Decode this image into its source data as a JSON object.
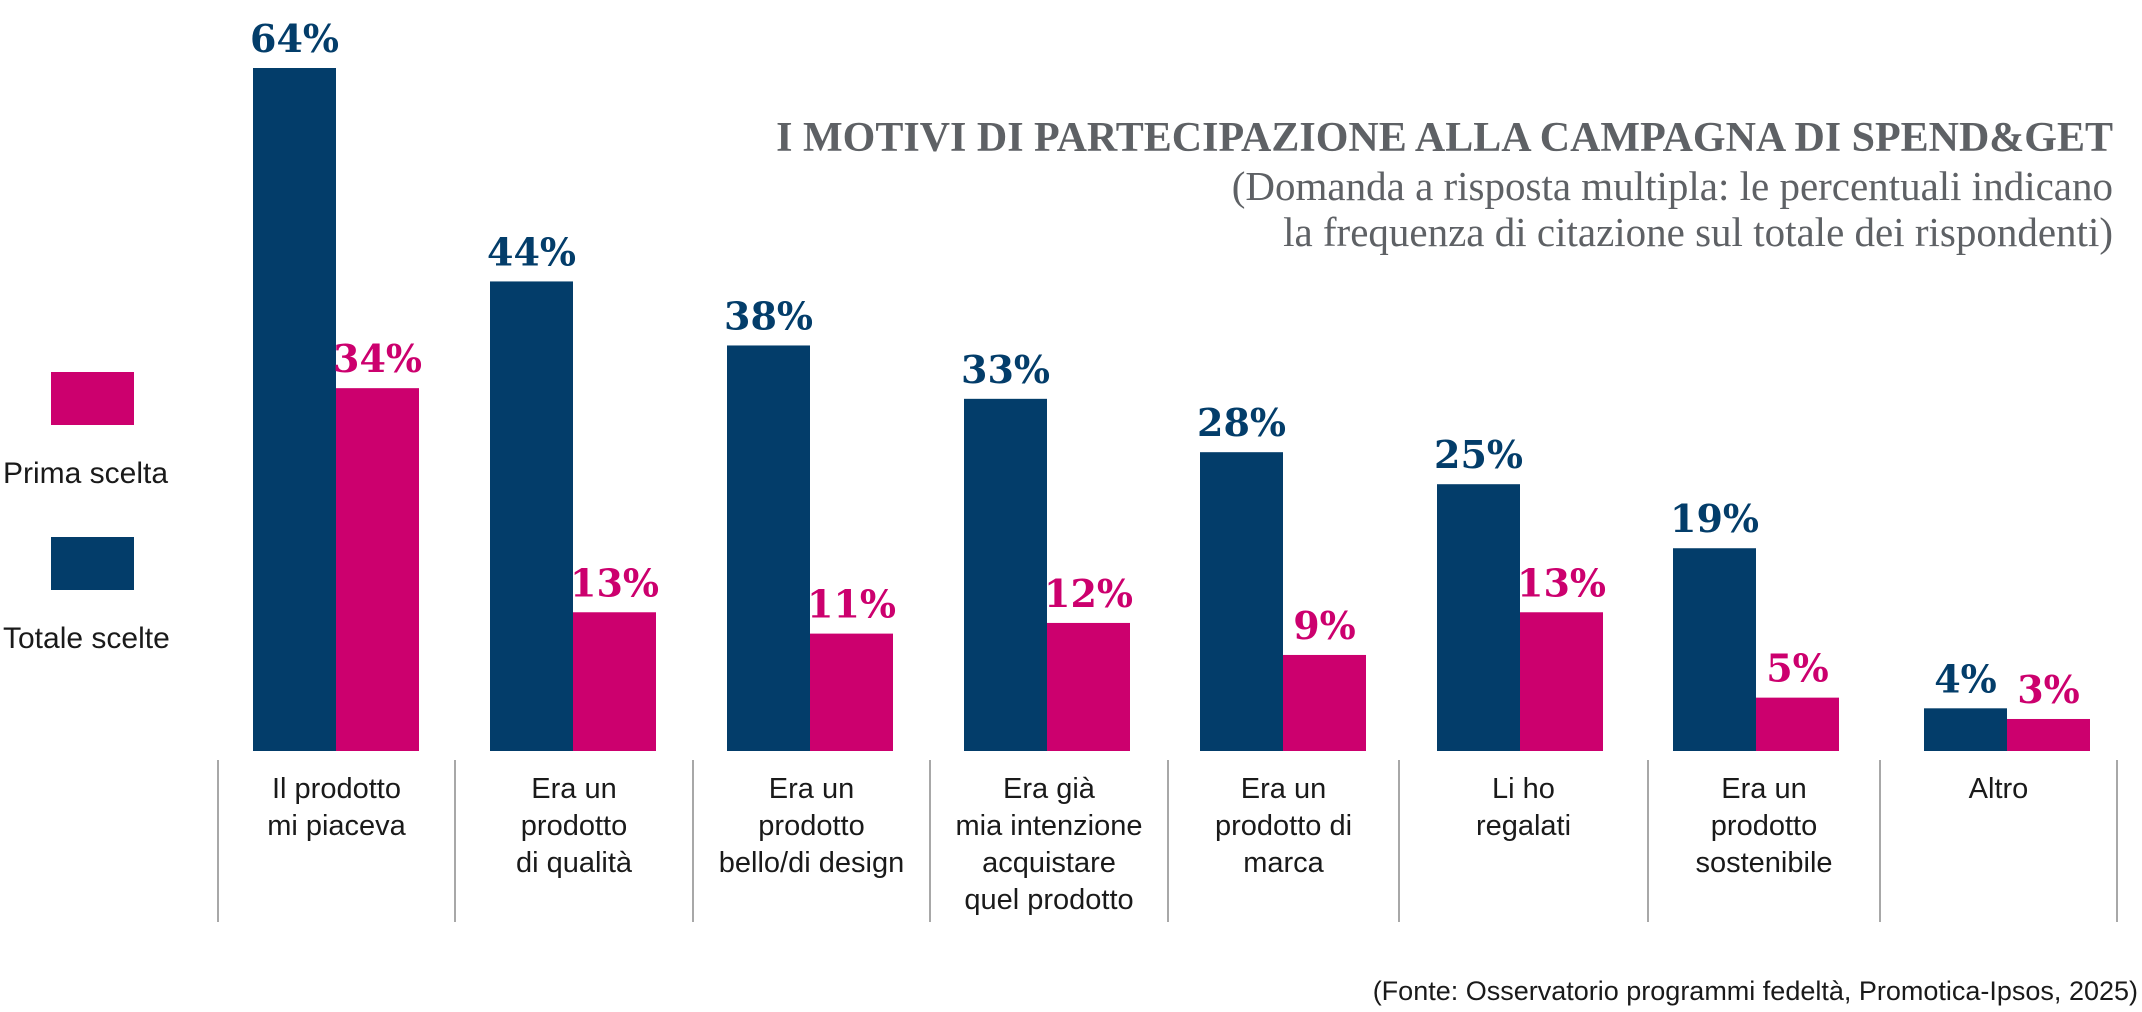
{
  "chart_data": {
    "type": "bar",
    "title": "I MOTIVI DI PARTECIPAZIONE ALLA CAMPAGNA DI SPEND&GET",
    "subtitle": [
      "(Domanda a risposta multipla: le percentuali indicano",
      "la frequenza di citazione sul totale dei rispondenti)"
    ],
    "xlabel": "",
    "ylabel": "",
    "ylim": [
      0,
      64
    ],
    "grid": false,
    "legend_position": "left",
    "value_suffix": "%",
    "categories": [
      [
        "Il prodotto",
        "mi piaceva"
      ],
      [
        "Era un",
        "prodotto",
        "di qualità"
      ],
      [
        "Era un",
        "prodotto",
        "bello/di design"
      ],
      [
        "Era già",
        "mia intenzione",
        "acquistare",
        "quel prodotto"
      ],
      [
        "Era un",
        "prodotto di",
        "marca"
      ],
      [
        "Li ho",
        "regalati"
      ],
      [
        "Era un",
        "prodotto",
        "sostenibile"
      ],
      [
        "Altro"
      ]
    ],
    "series": [
      {
        "name": "Totale scelte",
        "color": "#033d6a",
        "values": [
          64,
          44,
          38,
          33,
          28,
          25,
          19,
          4
        ]
      },
      {
        "name": "Prima scelta",
        "color": "#cc006e",
        "values": [
          34,
          13,
          11,
          12,
          9,
          13,
          5,
          3
        ]
      }
    ],
    "legend": [
      {
        "name": "Prima scelta",
        "color": "#cc006e"
      },
      {
        "name": "Totale scelte",
        "color": "#033d6a"
      }
    ],
    "source": "(Fonte: Osservatorio programmi fedeltà, Promotica-Ipsos, 2025)"
  }
}
